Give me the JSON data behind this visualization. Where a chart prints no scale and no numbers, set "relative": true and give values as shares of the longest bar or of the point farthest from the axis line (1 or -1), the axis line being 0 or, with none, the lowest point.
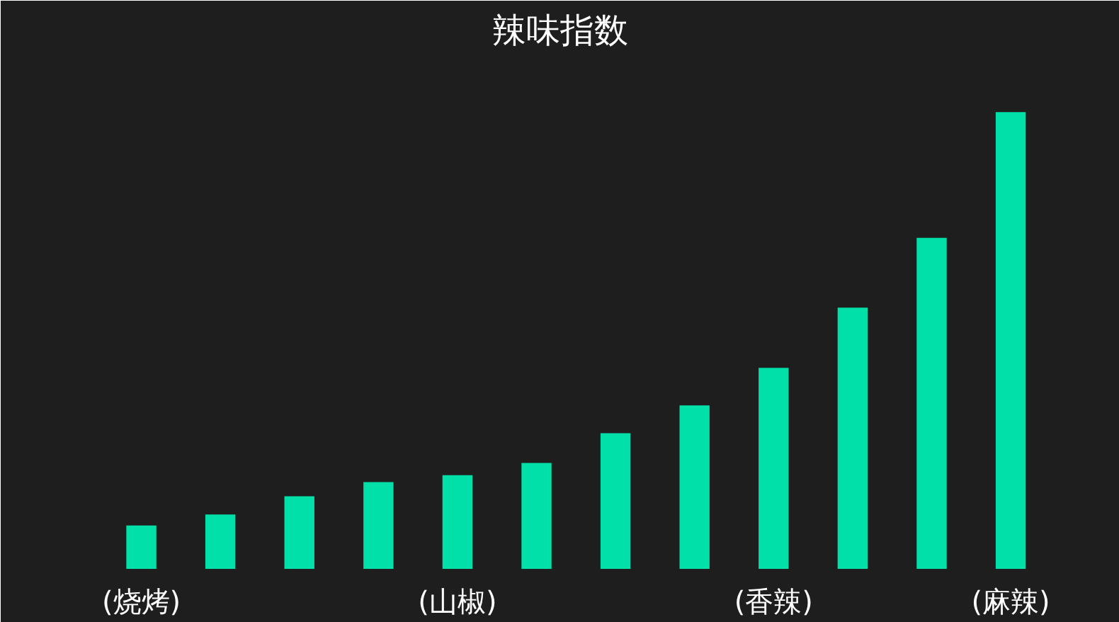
{
  "chart_data": {
    "type": "bar",
    "title": "辣味指数",
    "relative": true,
    "categories": [
      "(烧烤)",
      null,
      null,
      null,
      "(山椒)",
      null,
      null,
      null,
      "(香辣)",
      null,
      null,
      "(麻辣)"
    ],
    "values": [
      0.095,
      0.119,
      0.159,
      0.19,
      0.205,
      0.232,
      0.297,
      0.358,
      0.44,
      0.572,
      0.725,
      1
    ],
    "color": "#00e0a8",
    "grid": false
  }
}
